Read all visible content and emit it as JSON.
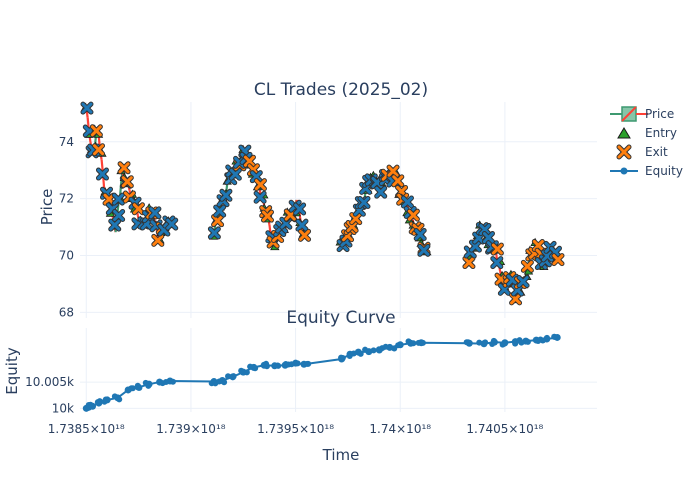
{
  "chart_data": [
    {
      "type": "candlestick",
      "title": "CL Trades (2025_02)",
      "xlabel": "",
      "ylabel": "Price",
      "ylim": [
        67.8,
        75.4
      ],
      "xlim": [
        1.73847e+18,
        1.74094e+18
      ],
      "y_ticks": [
        {
          "value": 68,
          "label": "68"
        },
        {
          "value": 70,
          "label": "70"
        },
        {
          "value": 72,
          "label": "72"
        },
        {
          "value": 74,
          "label": "74"
        }
      ],
      "grid": true,
      "legend_position": "top-right",
      "legend": [
        {
          "name": "Price",
          "symbol": "candle",
          "colors": [
            "#3d9970",
            "#ff4136"
          ]
        },
        {
          "name": "Entry",
          "symbol": "triangle-up",
          "color": "#2ca02c"
        },
        {
          "name": "Exit",
          "symbol": "x",
          "color": "#ff7f0e"
        },
        {
          "name": "Equity",
          "symbol": "line-marker",
          "color": "#1f77b4"
        }
      ],
      "sessions": [
        {
          "x_start": 1.7385e+18,
          "x_end": 1.7389e+18,
          "y_path": [
            75.2,
            73.6,
            74.4,
            72.4,
            71.7,
            70.9,
            72.9,
            72.5,
            71.9,
            71.2,
            71.3,
            71.7,
            70.6,
            71.1,
            71.0
          ]
        },
        {
          "x_start": 1.73911e+18,
          "x_end": 1.73954e+18,
          "y_path": [
            70.9,
            71.8,
            72.6,
            73.0,
            73.6,
            73.1,
            72.4,
            71.4,
            70.4,
            71.0,
            71.3,
            71.9,
            70.7
          ]
        },
        {
          "x_start": 1.73972e+18,
          "x_end": 1.74012e+18,
          "y_path": [
            70.3,
            70.9,
            71.4,
            72.1,
            72.9,
            72.3,
            72.7,
            72.9,
            72.0,
            71.6,
            70.8,
            70.3
          ]
        },
        {
          "x_start": 1.74033e+18,
          "x_end": 1.74075e+18,
          "y_path": [
            70.0,
            70.6,
            71.1,
            70.5,
            70.0,
            68.9,
            69.3,
            68.5,
            69.0,
            69.9,
            70.3,
            69.6,
            70.2,
            69.8
          ]
        }
      ]
    },
    {
      "type": "line",
      "title": "Equity Curve",
      "xlabel": "Time",
      "ylabel": "Equity",
      "ylim": [
        9999.3,
        10015.3
      ],
      "x_ticks": [
        {
          "value": 1.7385e+18,
          "label": "1.7385×10¹⁸"
        },
        {
          "value": 1.739e+18,
          "label": "1.739×10¹⁸"
        },
        {
          "value": 1.7395e+18,
          "label": "1.7395×10¹⁸"
        },
        {
          "value": 1.74e+18,
          "label": "1.74×10¹⁸"
        },
        {
          "value": 1.7405e+18,
          "label": "1.7405×10¹⁸"
        }
      ],
      "y_ticks": [
        {
          "value": 10000,
          "label": "10k"
        },
        {
          "value": 10005,
          "label": "10.005k"
        }
      ],
      "series": [
        {
          "name": "Equity",
          "color": "#1f77b4",
          "x": [
            1.7385e+18,
            1.73853e+18,
            1.73856e+18,
            1.7386e+18,
            1.73865e+18,
            1.7387e+18,
            1.73875e+18,
            1.7388e+18,
            1.73885e+18,
            1.7389e+18,
            1.73911e+18,
            1.73915e+18,
            1.7392e+18,
            1.73925e+18,
            1.7393e+18,
            1.73935e+18,
            1.7394e+18,
            1.73945e+18,
            1.7395e+18,
            1.73954e+18,
            1.73972e+18,
            1.73976e+18,
            1.7398e+18,
            1.73985e+18,
            1.7399e+18,
            1.73995e+18,
            1.74e+18,
            1.74005e+18,
            1.7401e+18,
            1.74033e+18,
            1.7404e+18,
            1.74045e+18,
            1.7405e+18,
            1.74055e+18,
            1.7406e+18,
            1.74065e+18,
            1.7407e+18,
            1.74075e+18
          ],
          "y": [
            10000.0,
            10000.4,
            10001.0,
            10001.6,
            10002.0,
            10003.5,
            10004.0,
            10004.6,
            10005.0,
            10005.2,
            10005.1,
            10005.3,
            10006.0,
            10006.9,
            10007.8,
            10008.2,
            10008.1,
            10008.2,
            10008.6,
            10008.4,
            10009.4,
            10010.3,
            10010.7,
            10010.8,
            10011.1,
            10011.6,
            10012.1,
            10012.4,
            10012.5,
            10012.4,
            10012.3,
            10012.6,
            10012.5,
            10012.7,
            10012.8,
            10013.0,
            10013.2,
            10013.5
          ]
        }
      ]
    }
  ]
}
